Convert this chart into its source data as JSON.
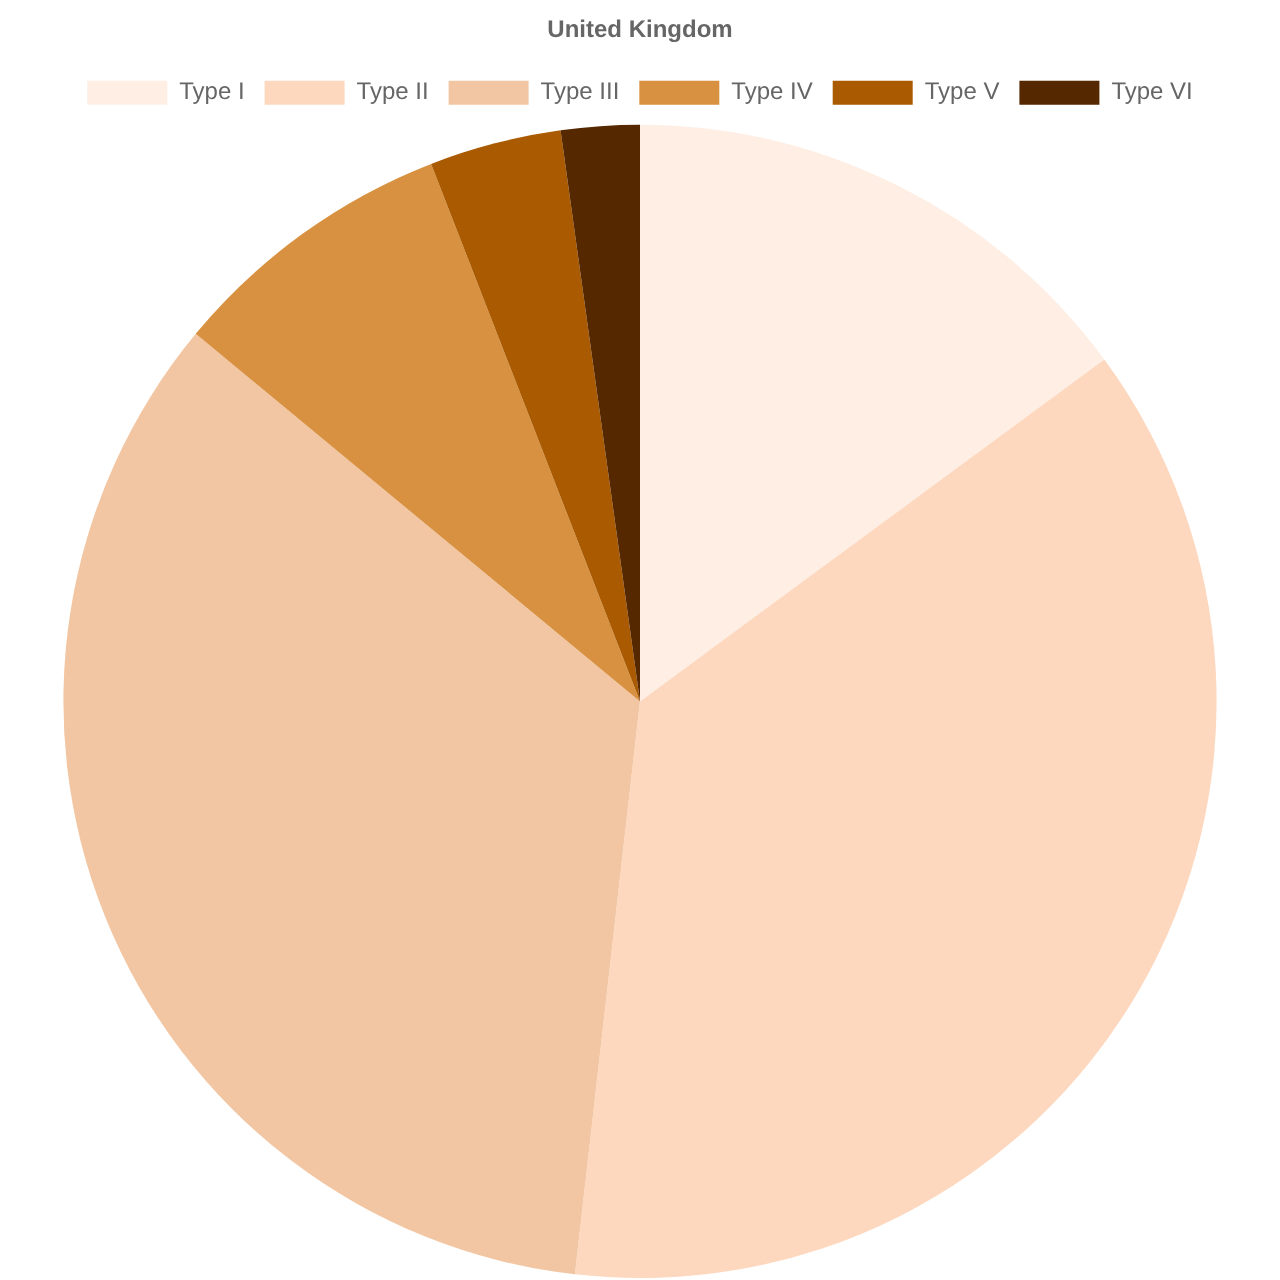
{
  "chart_data": {
    "type": "pie",
    "title": "United Kingdom",
    "categories": [
      "Type I",
      "Type II",
      "Type III",
      "Type IV",
      "Type V",
      "Type VI"
    ],
    "values": [
      14.9,
      36.9,
      34.2,
      8.1,
      3.7,
      2.2
    ],
    "colors": [
      "#feeee3",
      "#fdd8bf",
      "#f2c6a2",
      "#d89140",
      "#aa5a00",
      "#552800"
    ],
    "legend": "top"
  }
}
